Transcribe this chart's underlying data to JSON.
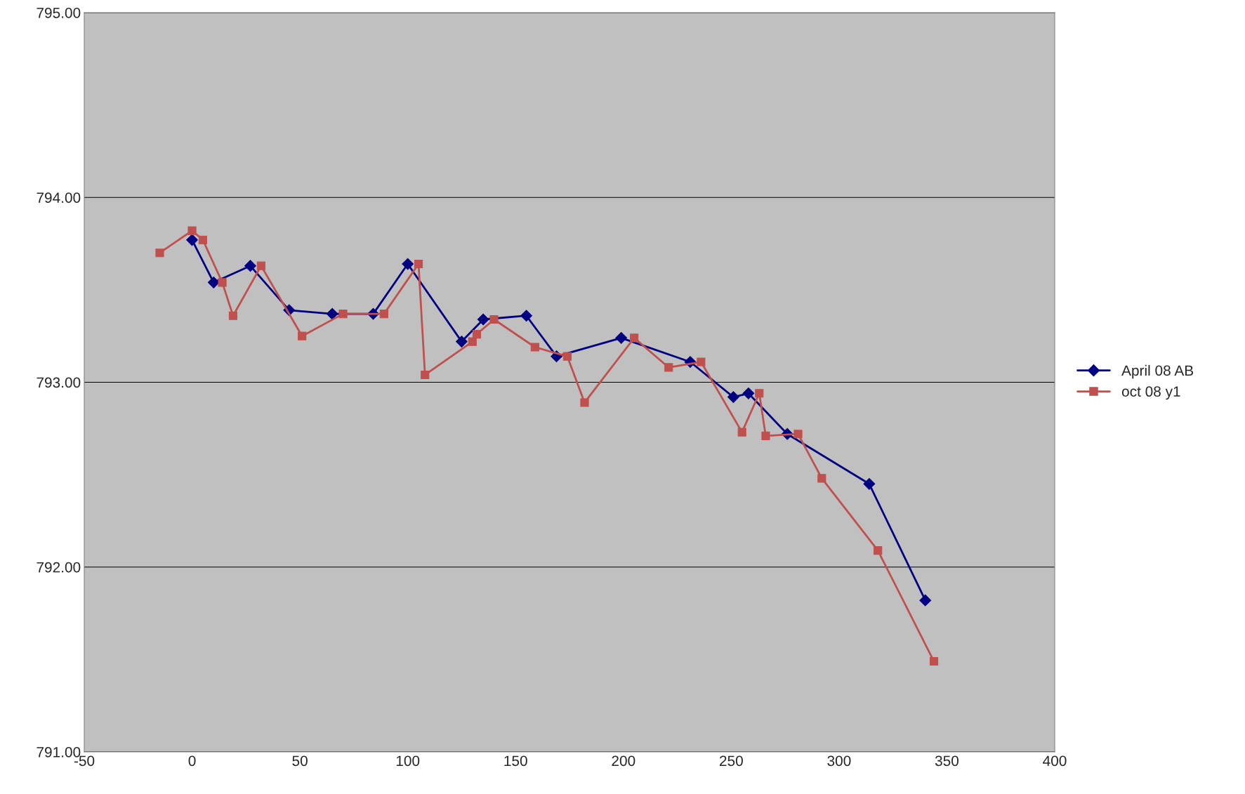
{
  "chart_data": {
    "type": "line",
    "xlim": [
      -50,
      400
    ],
    "xticks": [
      -50,
      0,
      50,
      100,
      150,
      200,
      250,
      300,
      350,
      400
    ],
    "ylim": [
      791,
      795
    ],
    "yticks": [
      {
        "value": 791,
        "label": "791.00"
      },
      {
        "value": 792,
        "label": "792.00"
      },
      {
        "value": 793,
        "label": "793.00"
      },
      {
        "value": 794,
        "label": "794.00"
      },
      {
        "value": 795,
        "label": "795.00"
      }
    ],
    "grid": "y",
    "legend": "right",
    "line_style": "solid",
    "series": [
      {
        "name": "April 08 AB",
        "color": "#000080",
        "marker": "diamond",
        "x": [
          0,
          10,
          27,
          45,
          65,
          84,
          100,
          125,
          135,
          155,
          169,
          199,
          231,
          251,
          258,
          276,
          314,
          340
        ],
        "values": [
          793.77,
          793.54,
          793.63,
          793.39,
          793.37,
          793.37,
          793.64,
          793.22,
          793.34,
          793.36,
          793.14,
          793.24,
          793.11,
          792.92,
          792.94,
          792.72,
          792.45,
          791.82
        ]
      },
      {
        "name": "oct 08 y1",
        "color": "#c0504d",
        "marker": "square",
        "x": [
          -15,
          0,
          5,
          14,
          19,
          32,
          51,
          70,
          89,
          105,
          108,
          130,
          132,
          140,
          159,
          174,
          182,
          205,
          221,
          236,
          255,
          263,
          266,
          281,
          292,
          318,
          344
        ],
        "values": [
          793.7,
          793.82,
          793.77,
          793.54,
          793.36,
          793.63,
          793.25,
          793.37,
          793.37,
          793.64,
          793.04,
          793.22,
          793.26,
          793.34,
          793.19,
          793.14,
          792.89,
          793.24,
          793.08,
          793.11,
          792.73,
          792.94,
          792.71,
          792.72,
          792.48,
          792.09,
          791.49
        ]
      }
    ]
  }
}
